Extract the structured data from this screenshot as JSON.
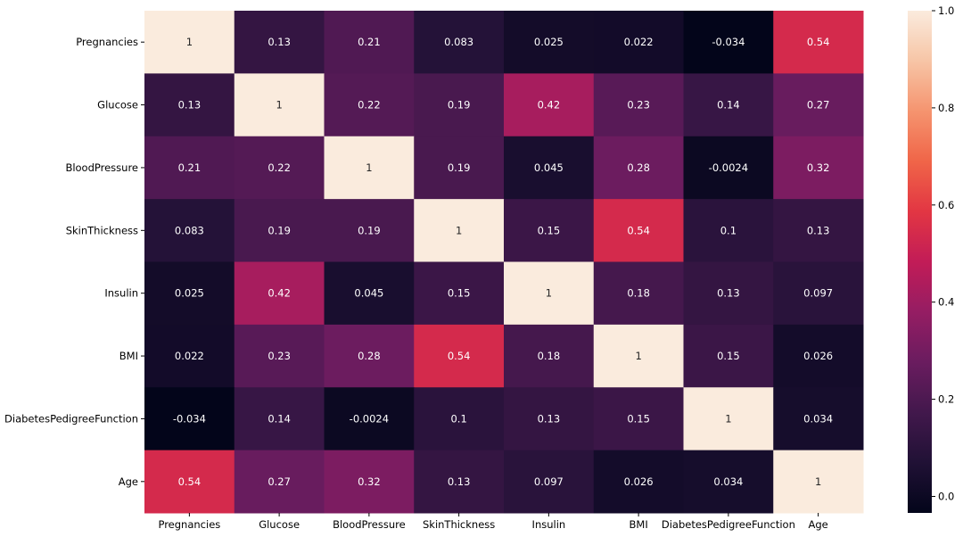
{
  "chart_data": {
    "type": "heatmap",
    "title": "",
    "xlabel": "",
    "ylabel": "",
    "rows": [
      "Pregnancies",
      "Glucose",
      "BloodPressure",
      "SkinThickness",
      "Insulin",
      "BMI",
      "DiabetesPedigreeFunction",
      "Age"
    ],
    "columns": [
      "Pregnancies",
      "Glucose",
      "BloodPressure",
      "SkinThickness",
      "Insulin",
      "BMI",
      "DiabetesPedigreeFunction",
      "Age"
    ],
    "values": [
      [
        1,
        0.13,
        0.21,
        0.083,
        0.025,
        0.022,
        -0.034,
        0.54
      ],
      [
        0.13,
        1,
        0.22,
        0.19,
        0.42,
        0.23,
        0.14,
        0.27
      ],
      [
        0.21,
        0.22,
        1,
        0.19,
        0.045,
        0.28,
        -0.0024,
        0.32
      ],
      [
        0.083,
        0.19,
        0.19,
        1,
        0.15,
        0.54,
        0.1,
        0.13
      ],
      [
        0.025,
        0.42,
        0.045,
        0.15,
        1,
        0.18,
        0.13,
        0.097
      ],
      [
        0.022,
        0.23,
        0.28,
        0.54,
        0.18,
        1,
        0.15,
        0.026
      ],
      [
        -0.034,
        0.14,
        -0.0024,
        0.1,
        0.13,
        0.15,
        1,
        0.034
      ],
      [
        0.54,
        0.27,
        0.32,
        0.13,
        0.097,
        0.026,
        0.034,
        1
      ]
    ],
    "colorbar": {
      "range": [
        -0.034,
        1.0
      ],
      "ticks": [
        0.0,
        0.2,
        0.4,
        0.6,
        0.8,
        1.0
      ],
      "tick_labels": [
        "0.0",
        "0.2",
        "0.4",
        "0.6",
        "0.8",
        "1.0"
      ],
      "colormap": "rocket"
    },
    "colors": {
      "annotation_light": "#ffffff",
      "annotation_dark": "#262626",
      "axis": "#000000"
    }
  }
}
